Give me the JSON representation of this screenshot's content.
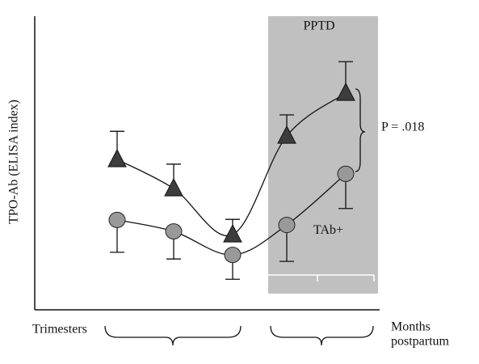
{
  "chart_data": {
    "type": "line",
    "ylabel": "TPO-Ab (ELISA index)",
    "xlabel_left": "Trimesters",
    "xlabel_right": [
      "Months",
      "postpartum"
    ],
    "shaded_label": "PPTD",
    "annotation": "P = .018",
    "categories": [
      null,
      null,
      null,
      null,
      null
    ],
    "ylim": [
      0,
      100
    ],
    "series": [
      {
        "marker": "triangle",
        "color": "#3d3d3d",
        "values": [
          51.2,
          41.3,
          25.6,
          59.2,
          73.8
        ],
        "errors": [
          9.6,
          8.3,
          5.2,
          7.2,
          10.7
        ],
        "error_side": "up"
      },
      {
        "name": "TAb+",
        "marker": "circle",
        "color": "#999999",
        "values": [
          30.6,
          26.7,
          18.7,
          28.9,
          46.3
        ],
        "errors": [
          11.0,
          9.4,
          8.3,
          12.4,
          11.8
        ],
        "error_side": "down"
      }
    ]
  }
}
